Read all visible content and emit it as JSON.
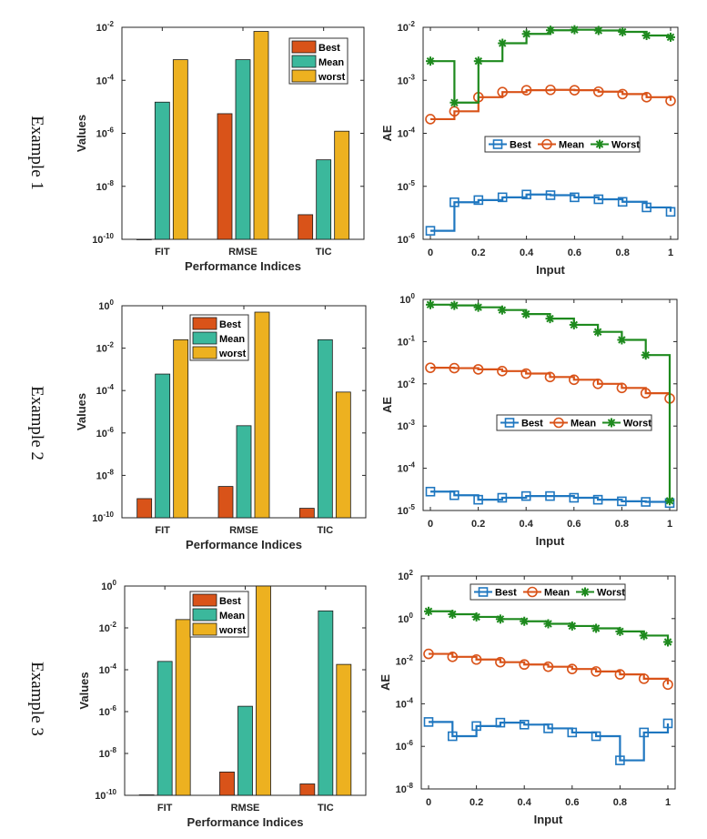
{
  "figure": {
    "row_labels": [
      "Example 1",
      "Example 2",
      "Example 3"
    ]
  },
  "colors": {
    "best": "#D95319",
    "mean": "#3BB89C",
    "worst": "#EDB120",
    "line_best": "#1F77C0",
    "line_mean": "#D95319",
    "line_worst": "#1E8A1E",
    "axis": "#262626"
  },
  "chart_data": [
    {
      "id": "ex1-bar",
      "type": "bar",
      "scale": "log",
      "categories": [
        "FIT",
        "RMSE",
        "TIC"
      ],
      "series": [
        {
          "name": "Best",
          "values": [
            1e-10,
            5.5e-06,
            8.5e-10
          ]
        },
        {
          "name": "Mean",
          "values": [
            1.5e-05,
            0.0006,
            1e-07
          ]
        },
        {
          "name": "worst",
          "values": [
            0.0006,
            0.007,
            1.2e-06
          ]
        }
      ],
      "xlabel": "Performance Indices",
      "ylabel": "Values",
      "ylim_exp": [
        -10,
        -2
      ],
      "yticks": [
        "-10",
        "-8",
        "-6",
        "-4",
        "-2"
      ],
      "legend": "top-right"
    },
    {
      "id": "ex1-line",
      "type": "line",
      "scale": "log",
      "step": true,
      "x": [
        0,
        0.1,
        0.2,
        0.3,
        0.4,
        0.5,
        0.6,
        0.7,
        0.8,
        0.9,
        1
      ],
      "series": [
        {
          "name": "Best",
          "marker": "square",
          "values": [
            1.45e-06,
            5e-06,
            5.5e-06,
            6.2e-06,
            7e-06,
            6.8e-06,
            6.2e-06,
            5.7e-06,
            5.1e-06,
            4e-06,
            3.3e-06
          ]
        },
        {
          "name": "Mean",
          "marker": "circle",
          "values": [
            0.000185,
            0.00026,
            0.00048,
            0.0006,
            0.00065,
            0.00066,
            0.00065,
            0.00061,
            0.00055,
            0.00048,
            0.00041
          ]
        },
        {
          "name": "Worst",
          "marker": "asterisk",
          "values": [
            0.0023,
            0.00038,
            0.0023,
            0.005,
            0.0075,
            0.0088,
            0.009,
            0.0087,
            0.0082,
            0.007,
            0.0065
          ]
        }
      ],
      "xlabel": "Input",
      "ylabel": "AE",
      "xlim": [
        0,
        1
      ],
      "xticks": [
        "0",
        "0.2",
        "0.4",
        "0.6",
        "0.8",
        "1"
      ],
      "ylim_exp": [
        -6,
        -2
      ],
      "yticks": [
        "-6",
        "-5",
        "-4",
        "-3",
        "-2"
      ],
      "legend": "center"
    },
    {
      "id": "ex2-bar",
      "type": "bar",
      "scale": "log",
      "categories": [
        "FIT",
        "RMSE",
        "TIC"
      ],
      "series": [
        {
          "name": "Best",
          "values": [
            8e-10,
            3e-09,
            2.8e-10
          ]
        },
        {
          "name": "Mean",
          "values": [
            0.0006,
            2.2e-06,
            0.025
          ]
        },
        {
          "name": "worst",
          "values": [
            0.025,
            0.5,
            8.5e-05
          ]
        }
      ],
      "xlabel": "Performance Indices",
      "ylabel": "Values",
      "ylim_exp": [
        -10,
        0
      ],
      "yticks": [
        "-10",
        "-8",
        "-6",
        "-4",
        "-2",
        "0"
      ],
      "legend": "top-center"
    },
    {
      "id": "ex2-line",
      "type": "line",
      "scale": "log",
      "step": true,
      "x": [
        0,
        0.1,
        0.2,
        0.3,
        0.4,
        0.5,
        0.6,
        0.7,
        0.8,
        0.9,
        1
      ],
      "series": [
        {
          "name": "Best",
          "marker": "square",
          "values": [
            2.8e-05,
            2.3e-05,
            1.8e-05,
            2e-05,
            2.2e-05,
            2.2e-05,
            2e-05,
            1.8e-05,
            1.65e-05,
            1.6e-05,
            1.5e-05
          ]
        },
        {
          "name": "Mean",
          "marker": "circle",
          "values": [
            0.024,
            0.0235,
            0.022,
            0.02,
            0.0175,
            0.0145,
            0.0125,
            0.01,
            0.008,
            0.006,
            0.0045
          ]
        },
        {
          "name": "Worst",
          "marker": "asterisk",
          "values": [
            0.75,
            0.72,
            0.65,
            0.56,
            0.45,
            0.35,
            0.25,
            0.17,
            0.11,
            0.048,
            1.7e-05
          ]
        }
      ],
      "xlabel": "Input",
      "ylabel": "AE",
      "xlim": [
        0,
        1
      ],
      "xticks": [
        "0",
        "0.2",
        "0.4",
        "0.6",
        "0.8",
        "1"
      ],
      "ylim_exp": [
        -5,
        0
      ],
      "yticks": [
        "-5",
        "-4",
        "-3",
        "-2",
        "-1",
        "0"
      ],
      "legend": "center-right"
    },
    {
      "id": "ex3-bar",
      "type": "bar",
      "scale": "log",
      "categories": [
        "FIT",
        "RMSE",
        "TIC"
      ],
      "series": [
        {
          "name": "Best",
          "values": [
            1.05e-10,
            1.3e-09,
            3.5e-10
          ]
        },
        {
          "name": "Mean",
          "values": [
            0.00025,
            1.8e-06,
            0.065
          ]
        },
        {
          "name": "worst",
          "values": [
            0.025,
            1,
            0.00018
          ]
        }
      ],
      "xlabel": "Performance Indices",
      "ylabel": "Values",
      "ylim_exp": [
        -10,
        0
      ],
      "yticks": [
        "-10",
        "-8",
        "-6",
        "-4",
        "-2",
        "0"
      ],
      "legend": "top-center"
    },
    {
      "id": "ex3-line",
      "type": "line",
      "scale": "log",
      "step": true,
      "x": [
        0,
        0.1,
        0.2,
        0.3,
        0.4,
        0.5,
        0.6,
        0.7,
        0.8,
        0.9,
        1
      ],
      "series": [
        {
          "name": "Best",
          "marker": "square",
          "values": [
            1.4e-05,
            3e-06,
            9e-06,
            1.3e-05,
            1.05e-05,
            7e-06,
            4.5e-06,
            3e-06,
            2.2e-07,
            4.5e-06,
            1.2e-05
          ]
        },
        {
          "name": "Mean",
          "marker": "circle",
          "values": [
            0.022,
            0.016,
            0.012,
            0.009,
            0.007,
            0.0055,
            0.0043,
            0.0033,
            0.0024,
            0.0015,
            0.0008
          ]
        },
        {
          "name": "Worst",
          "marker": "asterisk",
          "values": [
            2.2,
            1.6,
            1.2,
            0.95,
            0.75,
            0.57,
            0.45,
            0.35,
            0.25,
            0.16,
            0.08
          ]
        }
      ],
      "xlabel": "Input",
      "ylabel": "AE",
      "xlim": [
        0,
        1
      ],
      "xticks": [
        "0",
        "0.2",
        "0.4",
        "0.6",
        "0.8",
        "1"
      ],
      "ylim_exp": [
        -8,
        2
      ],
      "yticks": [
        "-8",
        "-6",
        "-4",
        "-2",
        "0",
        "2"
      ],
      "legend": "top"
    }
  ]
}
